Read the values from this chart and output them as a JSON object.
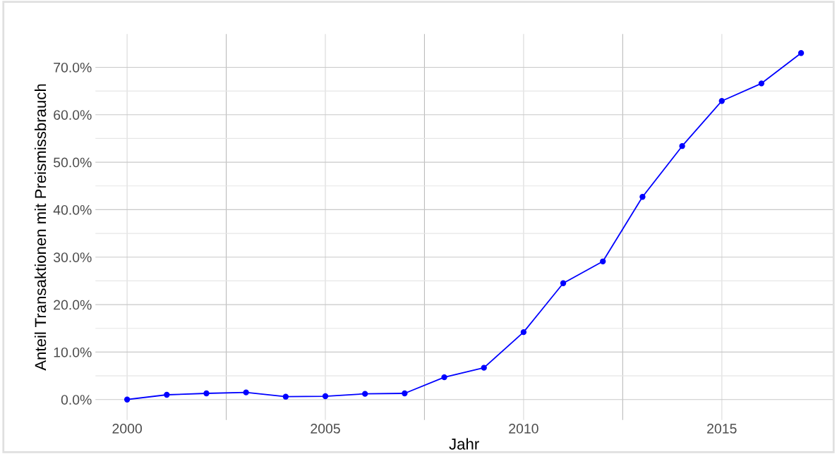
{
  "chart_data": {
    "type": "line",
    "xlabel": "Jahr",
    "ylabel": "Anteil Transaktionen mit Preismissbrauch",
    "x": [
      2000,
      2001,
      2002,
      2003,
      2004,
      2005,
      2006,
      2007,
      2008,
      2009,
      2010,
      2011,
      2012,
      2013,
      2014,
      2015,
      2016,
      2017
    ],
    "series": [
      {
        "color": "#0000ff",
        "values": [
          0.0,
          1.0,
          1.3,
          1.5,
          0.6,
          0.7,
          1.2,
          1.3,
          4.7,
          6.7,
          14.2,
          24.5,
          29.1,
          42.7,
          53.4,
          62.9,
          66.6,
          73.0
        ]
      }
    ],
    "xlim": [
      1999.2,
      2017.8
    ],
    "xticks": [
      2000,
      2005,
      2010,
      2015
    ],
    "ylim": [
      -4.3,
      77
    ],
    "yticks": [
      {
        "value": 0,
        "label": "0.0%"
      },
      {
        "value": 10,
        "label": "10.0%"
      },
      {
        "value": 20,
        "label": "20.0%"
      },
      {
        "value": 30,
        "label": "30.0%"
      },
      {
        "value": 40,
        "label": "40.0%"
      },
      {
        "value": 50,
        "label": "50.0%"
      },
      {
        "value": 60,
        "label": "60.0%"
      },
      {
        "value": 70,
        "label": "70.0%"
      }
    ],
    "grid": true,
    "marker": "circle",
    "line_style": "solid"
  }
}
